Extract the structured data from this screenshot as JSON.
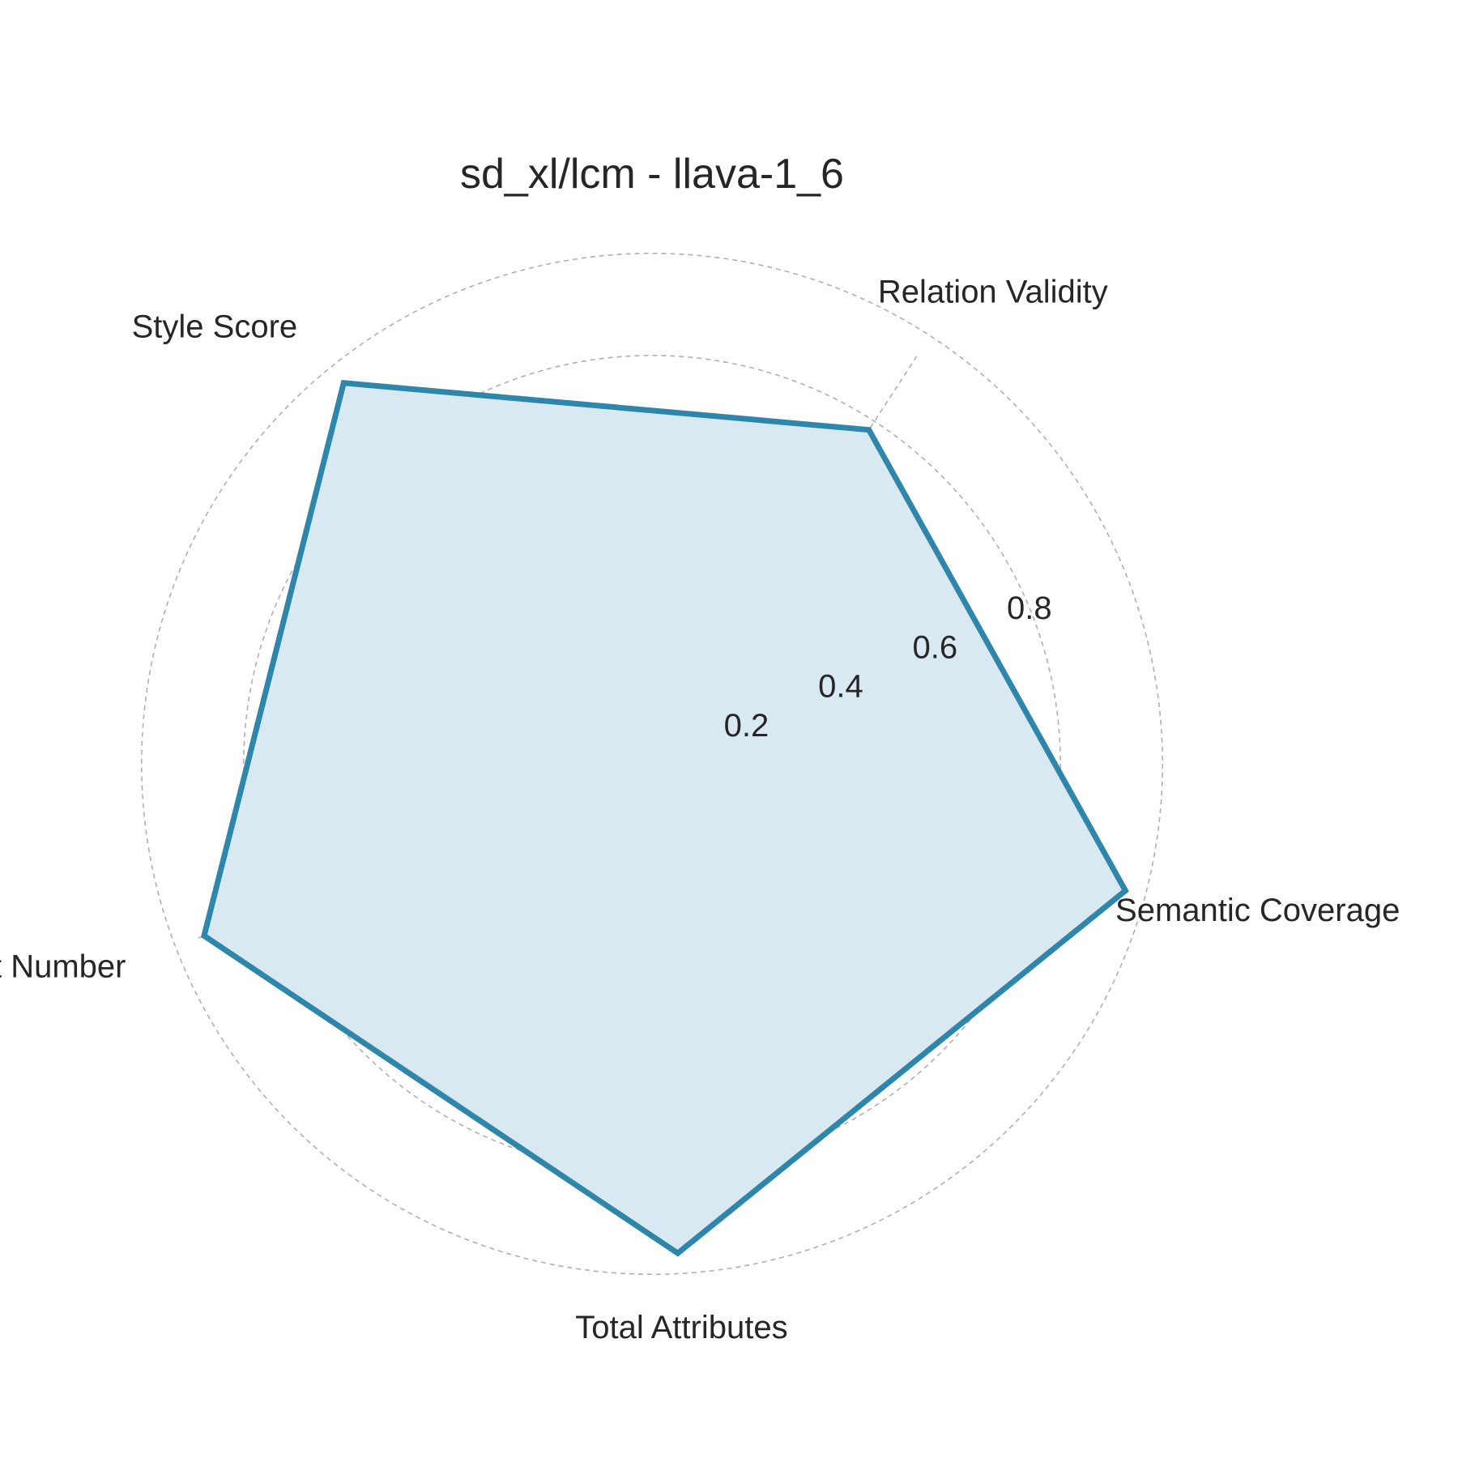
{
  "chart_data": {
    "type": "radar",
    "title": "sd_xl/lcm - llava-1_6",
    "axes": [
      "Semantic Coverage",
      "Relation Validity",
      "Style Score",
      "Object Number",
      "Total Attributes"
    ],
    "radial_ticks": [
      0.2,
      0.4,
      0.6,
      0.8
    ],
    "radial_range": [
      0,
      0.96
    ],
    "grid": true,
    "series": [
      {
        "values": [
          0.96,
          0.78,
          0.96,
          0.94,
          0.96
        ],
        "line_color": "#2e86ab",
        "fill_color": "#d9e9f1"
      }
    ]
  }
}
